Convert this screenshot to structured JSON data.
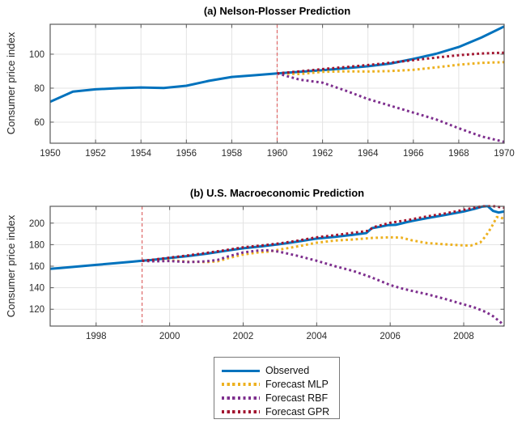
{
  "colors": {
    "observed": "#0072BD",
    "forecast_mlp": "#EDB120",
    "forecast_rbf": "#7E2F8E",
    "forecast_gpr": "#A2142F",
    "forecast_start_line": "#E07070",
    "grid": "#E3E3E3",
    "axis": "#595959",
    "tick_label": "#2B2B2B"
  },
  "legend": {
    "items": [
      {
        "label": "Observed",
        "color": "observed",
        "line_style": "solid"
      },
      {
        "label": "Forecast MLP",
        "color": "forecast_mlp",
        "line_style": "dotted"
      },
      {
        "label": "Forecast RBF",
        "color": "forecast_rbf",
        "line_style": "dotted"
      },
      {
        "label": "Forecast GPR",
        "color": "forecast_gpr",
        "line_style": "dotted"
      }
    ]
  },
  "chart_data": [
    {
      "id": "a",
      "type": "line",
      "title": "(a) Nelson-Plosser Prediction",
      "xlabel": "",
      "ylabel": "Consumer price index",
      "xlim": [
        1950,
        1970
      ],
      "ylim": [
        47.6,
        117.6
      ],
      "xticks": [
        1950,
        1952,
        1954,
        1956,
        1958,
        1960,
        1962,
        1964,
        1966,
        1968,
        1970
      ],
      "yticks": [
        60,
        80,
        100
      ],
      "grid": true,
      "forecast_start_line_x": 1960,
      "series": [
        {
          "name": "Observed",
          "color": "observed",
          "style": "solid",
          "points": [
            [
              1950,
              72
            ],
            [
              1951,
              78
            ],
            [
              1952,
              79.3
            ],
            [
              1953,
              80
            ],
            [
              1954,
              80.4
            ],
            [
              1955,
              80.1
            ],
            [
              1956,
              81.4
            ],
            [
              1957,
              84.3
            ],
            [
              1958,
              86.6
            ],
            [
              1959,
              87.6
            ],
            [
              1960,
              88.7
            ],
            [
              1961,
              89.6
            ],
            [
              1962,
              90.6
            ],
            [
              1963,
              91.7
            ],
            [
              1964,
              92.9
            ],
            [
              1965,
              94.5
            ],
            [
              1966,
              97.2
            ],
            [
              1967,
              100.2
            ],
            [
              1968,
              104.2
            ],
            [
              1969,
              109.8
            ],
            [
              1970,
              116.3
            ]
          ]
        },
        {
          "name": "Forecast MLP",
          "color": "forecast_mlp",
          "style": "dotted",
          "points": [
            [
              1960,
              88.7
            ],
            [
              1961,
              88.3
            ],
            [
              1962,
              89.6
            ],
            [
              1963,
              89.9
            ],
            [
              1964,
              89.8
            ],
            [
              1965,
              90.1
            ],
            [
              1966,
              90.8
            ],
            [
              1967,
              92.2
            ],
            [
              1968,
              93.8
            ],
            [
              1969,
              94.9
            ],
            [
              1970,
              95.3
            ]
          ]
        },
        {
          "name": "Forecast RBF",
          "color": "forecast_rbf",
          "style": "dotted",
          "points": [
            [
              1960,
              88.7
            ],
            [
              1961,
              85.0
            ],
            [
              1962,
              83.2
            ],
            [
              1963,
              78.6
            ],
            [
              1964,
              73.6
            ],
            [
              1965,
              69.6
            ],
            [
              1966,
              65.6
            ],
            [
              1967,
              61.6
            ],
            [
              1968,
              56.4
            ],
            [
              1969,
              51.6
            ],
            [
              1970,
              48.4
            ]
          ]
        },
        {
          "name": "Forecast GPR",
          "color": "forecast_gpr",
          "style": "dotted",
          "points": [
            [
              1960,
              88.7
            ],
            [
              1961,
              89.9
            ],
            [
              1962,
              91.2
            ],
            [
              1963,
              92.4
            ],
            [
              1964,
              93.6
            ],
            [
              1965,
              95
            ],
            [
              1966,
              96.5
            ],
            [
              1967,
              98
            ],
            [
              1968,
              99.4
            ],
            [
              1969,
              100.4
            ],
            [
              1970,
              100.9
            ]
          ]
        }
      ]
    },
    {
      "id": "b",
      "type": "line",
      "title": "(b) U.S. Macroeconomic Prediction",
      "xlabel": "",
      "ylabel": "Consumer price index",
      "xlim": [
        1996.75,
        2009.1
      ],
      "ylim": [
        104.4,
        215.6
      ],
      "xticks": [
        1998,
        2000,
        2002,
        2004,
        2006,
        2008
      ],
      "yticks": [
        120,
        140,
        160,
        180,
        200
      ],
      "grid": true,
      "forecast_start_line_x": 1999.25,
      "series": [
        {
          "name": "Observed",
          "color": "observed",
          "style": "solid",
          "points": [
            [
              1996.75,
              157.5
            ],
            [
              1997,
              158.2
            ],
            [
              1997.5,
              159.7
            ],
            [
              1998,
              161.2
            ],
            [
              1998.5,
              162.7
            ],
            [
              1999,
              164.2
            ],
            [
              1999.25,
              165
            ],
            [
              1999.5,
              165.7
            ],
            [
              2000,
              167.6
            ],
            [
              2000.5,
              169.4
            ],
            [
              2001,
              171.6
            ],
            [
              2001.5,
              174.1
            ],
            [
              2002,
              176.6
            ],
            [
              2002.5,
              178.4
            ],
            [
              2003,
              180.4
            ],
            [
              2003.5,
              182.9
            ],
            [
              2004,
              185.6
            ],
            [
              2004.5,
              187.2
            ],
            [
              2005,
              189.2
            ],
            [
              2005.35,
              190.8
            ],
            [
              2005.5,
              195.3
            ],
            [
              2005.75,
              196.8
            ],
            [
              2005.95,
              198.2
            ],
            [
              2006.15,
              198.4
            ],
            [
              2006.5,
              201.3
            ],
            [
              2007,
              204.6
            ],
            [
              2007.5,
              207.6
            ],
            [
              2008,
              210.8
            ],
            [
              2008.3,
              213.3
            ],
            [
              2008.5,
              215.3
            ],
            [
              2008.65,
              215.8
            ],
            [
              2008.8,
              211.3
            ],
            [
              2008.95,
              209.8
            ],
            [
              2009.1,
              210.8
            ]
          ]
        },
        {
          "name": "Forecast MLP",
          "color": "forecast_mlp",
          "style": "dotted",
          "points": [
            [
              1999.25,
              165
            ],
            [
              1999.5,
              164.8
            ],
            [
              2000,
              165.5
            ],
            [
              2000.5,
              164.2
            ],
            [
              2001,
              163.8
            ],
            [
              2001.3,
              164.5
            ],
            [
              2001.6,
              167.5
            ],
            [
              2002,
              170.8
            ],
            [
              2002.4,
              172.8
            ],
            [
              2002.7,
              173.5
            ],
            [
              2003,
              175.5
            ],
            [
              2003.5,
              178.5
            ],
            [
              2004,
              181.8
            ],
            [
              2004.5,
              183.8
            ],
            [
              2005,
              184.8
            ],
            [
              2005.5,
              186.2
            ],
            [
              2006,
              186.8
            ],
            [
              2006.3,
              186.5
            ],
            [
              2006.6,
              184
            ],
            [
              2007,
              181.5
            ],
            [
              2007.5,
              180.3
            ],
            [
              2008,
              179.3
            ],
            [
              2008.2,
              179.2
            ],
            [
              2008.45,
              182
            ],
            [
              2008.6,
              188
            ],
            [
              2008.75,
              196
            ],
            [
              2008.9,
              205.5
            ],
            [
              2009,
              205.5
            ],
            [
              2009.1,
              203.5
            ]
          ]
        },
        {
          "name": "Forecast RBF",
          "color": "forecast_rbf",
          "style": "dotted",
          "points": [
            [
              1999.25,
              165
            ],
            [
              1999.5,
              164.5
            ],
            [
              2000,
              164.8
            ],
            [
              2000.5,
              163.8
            ],
            [
              2001,
              164.5
            ],
            [
              2001.3,
              165.8
            ],
            [
              2001.6,
              169.2
            ],
            [
              2002,
              172.8
            ],
            [
              2002.4,
              174.5
            ],
            [
              2002.7,
              174.8
            ],
            [
              2003,
              173.3
            ],
            [
              2003.5,
              169.5
            ],
            [
              2004,
              165
            ],
            [
              2004.5,
              160
            ],
            [
              2005,
              155.5
            ],
            [
              2005.5,
              149.5
            ],
            [
              2006,
              142.5
            ],
            [
              2006.3,
              139.5
            ],
            [
              2006.6,
              137
            ],
            [
              2007,
              134
            ],
            [
              2007.5,
              129.5
            ],
            [
              2008,
              124.5
            ],
            [
              2008.3,
              121.5
            ],
            [
              2008.6,
              117.5
            ],
            [
              2008.8,
              113.5
            ],
            [
              2009,
              108
            ],
            [
              2009.1,
              104.5
            ]
          ]
        },
        {
          "name": "Forecast GPR",
          "color": "forecast_gpr",
          "style": "dotted",
          "points": [
            [
              1999.25,
              165
            ],
            [
              1999.5,
              165.8
            ],
            [
              2000,
              168
            ],
            [
              2000.5,
              170
            ],
            [
              2001,
              172.3
            ],
            [
              2001.5,
              174.8
            ],
            [
              2002,
              177.5
            ],
            [
              2002.5,
              179.2
            ],
            [
              2003,
              181.2
            ],
            [
              2003.5,
              183.8
            ],
            [
              2004,
              186.8
            ],
            [
              2004.5,
              188.8
            ],
            [
              2005,
              191
            ],
            [
              2005.4,
              192.8
            ],
            [
              2005.55,
              196.3
            ],
            [
              2006,
              200.3
            ],
            [
              2006.5,
              203
            ],
            [
              2007,
              206.2
            ],
            [
              2007.5,
              209
            ],
            [
              2008,
              212.3
            ],
            [
              2008.3,
              214.3
            ],
            [
              2008.55,
              216
            ],
            [
              2008.7,
              216.3
            ],
            [
              2008.9,
              215.3
            ],
            [
              2009.1,
              214.3
            ]
          ]
        }
      ]
    }
  ]
}
